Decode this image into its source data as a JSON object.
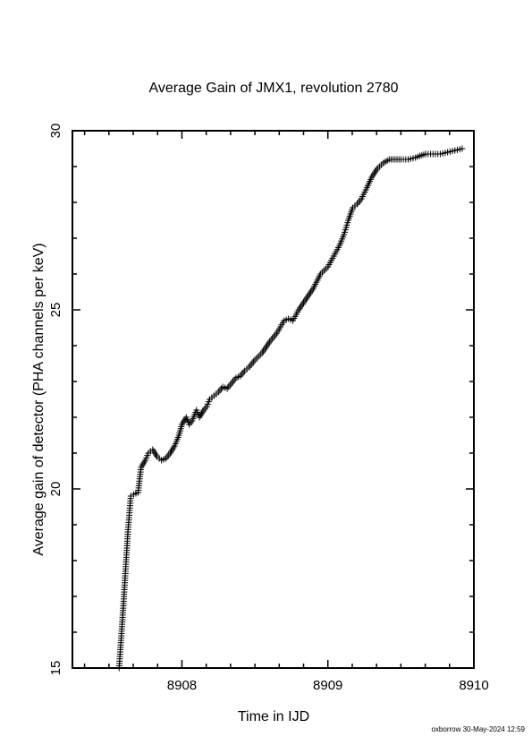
{
  "chart_data": {
    "type": "scatter",
    "title": "Average Gain of JMX1, revolution 2780",
    "xlabel": "Time in IJD",
    "ylabel": "Average gain of detector (PHA channels per keV)",
    "xlim": [
      8907.25,
      8910.0
    ],
    "ylim": [
      15,
      30
    ],
    "x_ticks": [
      "8908",
      "8909",
      "8910"
    ],
    "y_ticks": [
      "15",
      "20",
      "25",
      "30"
    ],
    "marker": "plus",
    "grid": false,
    "legend": "none",
    "series": [
      {
        "x": [
          8907.57,
          8907.6,
          8907.63,
          8907.65,
          8907.67,
          8907.7,
          8907.72,
          8907.75,
          8907.77,
          8907.8,
          8907.83,
          8907.86,
          8907.89,
          8907.92,
          8907.95,
          8907.98,
          8908.0,
          8908.03,
          8908.05,
          8908.07,
          8908.1,
          8908.12,
          8908.15,
          8908.17,
          8908.19,
          8908.22,
          8908.25,
          8908.28,
          8908.31,
          8908.34,
          8908.37,
          8908.4,
          8908.43,
          8908.46,
          8908.5,
          8908.55,
          8908.6,
          8908.65,
          8908.7,
          8908.73,
          8908.76,
          8908.8,
          8908.85,
          8908.9,
          8908.95,
          8909.0,
          8909.04,
          8909.08,
          8909.11,
          8909.14,
          8909.17,
          8909.2,
          8909.23,
          8909.26,
          8909.3,
          8909.34,
          8909.38,
          8909.42,
          8909.46,
          8909.5,
          8909.55,
          8909.6,
          8909.63,
          8909.67,
          8909.72,
          8909.77,
          8909.82,
          8909.87,
          8909.92
        ],
        "y": [
          15.0,
          16.8,
          18.8,
          19.8,
          19.85,
          19.9,
          20.6,
          20.8,
          21.0,
          21.1,
          20.9,
          20.8,
          20.85,
          21.0,
          21.2,
          21.5,
          21.8,
          22.0,
          21.8,
          21.9,
          22.2,
          22.0,
          22.2,
          22.3,
          22.5,
          22.6,
          22.7,
          22.85,
          22.8,
          22.95,
          23.1,
          23.15,
          23.3,
          23.4,
          23.6,
          23.8,
          24.1,
          24.35,
          24.7,
          24.75,
          24.7,
          25.0,
          25.3,
          25.6,
          26.0,
          26.2,
          26.5,
          26.8,
          27.1,
          27.5,
          27.85,
          27.95,
          28.1,
          28.35,
          28.7,
          28.95,
          29.1,
          29.2,
          29.2,
          29.2,
          29.2,
          29.25,
          29.3,
          29.35,
          29.35,
          29.35,
          29.4,
          29.45,
          29.5
        ]
      }
    ]
  },
  "footer": "oxborrow 30-May-2024 12:59"
}
